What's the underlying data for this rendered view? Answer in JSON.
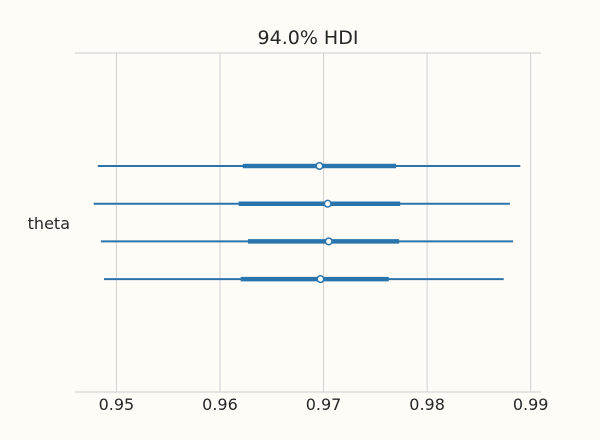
{
  "chart_data": {
    "type": "forest",
    "title": "94.0% HDI",
    "variable": "theta",
    "xlim": [
      0.946,
      0.991
    ],
    "xticks": [
      0.95,
      0.96,
      0.97,
      0.98,
      0.99
    ],
    "xtick_labels": [
      "0.95",
      "0.96",
      "0.97",
      "0.98",
      "0.99"
    ],
    "grid": "vertical",
    "line_color": "#2a74ad",
    "grid_color": "#d0d0d0",
    "chains": [
      {
        "hdi_low": 0.9482,
        "hdi_high": 0.989,
        "q_low": 0.9622,
        "q_high": 0.977,
        "median": 0.9696
      },
      {
        "hdi_low": 0.9478,
        "hdi_high": 0.988,
        "q_low": 0.9618,
        "q_high": 0.9774,
        "median": 0.9704
      },
      {
        "hdi_low": 0.9485,
        "hdi_high": 0.9883,
        "q_low": 0.9627,
        "q_high": 0.9773,
        "median": 0.9705
      },
      {
        "hdi_low": 0.9488,
        "hdi_high": 0.9874,
        "q_low": 0.962,
        "q_high": 0.9763,
        "median": 0.9697
      }
    ]
  }
}
